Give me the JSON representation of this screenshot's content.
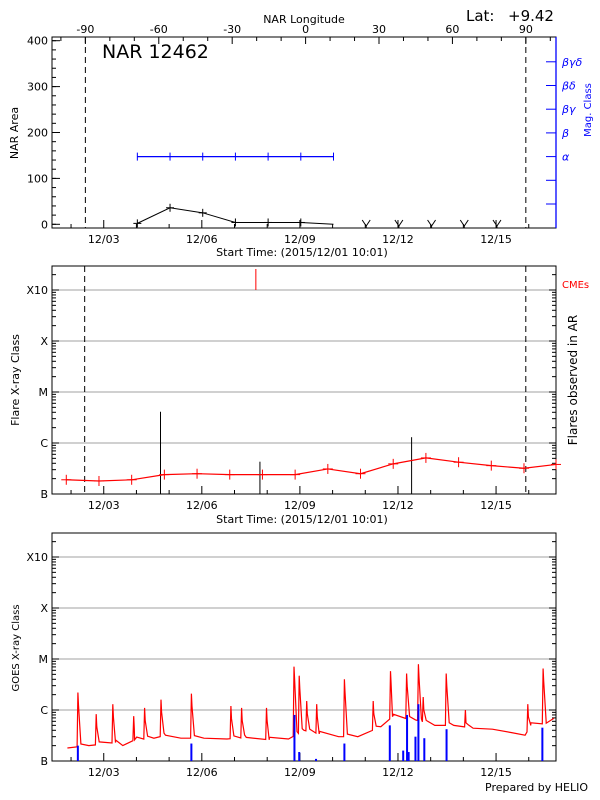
{
  "header": {
    "lat_label": "Lat:",
    "lat_value": "+9.42"
  },
  "footer": {
    "credit": "Prepared by HELIO"
  },
  "colors": {
    "axis": "#000000",
    "grid": "#a0a0a0",
    "mag_class": "#0000ff",
    "flare_series": "#ff0000",
    "cme": "#ff0000",
    "goes_flux": "#ff0000",
    "goes_events": "#0000ff"
  },
  "chart_data": [
    {
      "type": "line",
      "title": "NAR 12462",
      "xlabel": "Start Time: (2015/12/01 10:01)",
      "ylabel": "NAR Area",
      "y2label": "Mag. Class",
      "ylim": [
        0,
        400
      ],
      "yticks": [
        "0",
        "100",
        "200",
        "300",
        "400"
      ],
      "xticks": [
        "12/03",
        "12/06",
        "12/09",
        "12/12",
        "12/15"
      ],
      "top_axis": {
        "label": "NAR Longitude",
        "ticks": [
          "-90",
          "-60",
          "-30",
          "0",
          "30",
          "60",
          "90"
        ]
      },
      "limb_longitudes": [
        -90,
        90
      ],
      "mag_class_ticks": [
        "",
        "",
        "α",
        "β",
        "βγ",
        "βδ",
        "βγδ"
      ],
      "area": {
        "x": [
          "12/04 00:40",
          "12/05 00:40",
          "12/06 00:40",
          "12/07 00:40",
          "12/08 00:40",
          "12/09 00:40",
          "12/10 00:40"
        ],
        "y": [
          2,
          36,
          25,
          4,
          4,
          4,
          0
        ]
      },
      "no_data": [
        "12/11 00:40",
        "12/12 00:40",
        "12/13 00:40",
        "12/14 00:40",
        "12/15 00:40"
      ],
      "mag_class": {
        "x": [
          "12/04 00:40",
          "12/05 00:40",
          "12/06 00:40",
          "12/07 00:40",
          "12/08 00:40",
          "12/09 00:40",
          "12/10 00:40"
        ],
        "values": [
          "α",
          "α",
          "α",
          "α",
          "α",
          "α",
          "α"
        ]
      }
    },
    {
      "type": "line",
      "xlabel": "Start Time: (2015/12/01 10:01)",
      "ylabel": "Flare X-ray Class",
      "y2label": "Flares observed in AR",
      "cme_label": "CMEs",
      "yticks": [
        "B",
        "C",
        "M",
        "X",
        "X10"
      ],
      "xticks": [
        "12/03",
        "12/06",
        "12/09",
        "12/12",
        "12/15"
      ],
      "grid": true,
      "limb_crossings": [
        "12/02 10:00",
        "12/15 21:50"
      ],
      "daily_level": {
        "x": [
          "12/01 20:30",
          "12/02 20:30",
          "12/03 20:30",
          "12/04 20:30",
          "12/05 20:30",
          "12/06 20:30",
          "12/07 20:30",
          "12/08 20:30",
          "12/09 20:30",
          "12/10 20:30",
          "12/11 20:30",
          "12/12 20:30",
          "12/13 20:30",
          "12/14 20:30",
          "12/15 20:30",
          "12/16 20:30"
        ],
        "y": [
          "B1.9",
          "B1.8",
          "B1.9",
          "B2.4",
          "B2.5",
          "B2.4",
          "B2.4",
          "B2.4",
          "B3.1",
          "B2.5",
          "B3.9",
          "B5.1",
          "B4.2",
          "B3.6",
          "B3.2",
          "B3.8"
        ]
      },
      "flares": [
        {
          "time": "12/04 17:40",
          "class": "C4.1"
        },
        {
          "time": "12/07 18:40",
          "class": "B4.3"
        },
        {
          "time": "12/12 10:00",
          "class": "C1.3"
        }
      ],
      "cmes": [
        "12/07 15:40"
      ]
    },
    {
      "type": "line",
      "ylabel": "GOES X-ray Class",
      "yticks": [
        "B",
        "C",
        "M",
        "X",
        "X10"
      ],
      "xticks": [
        "12/03",
        "12/06",
        "12/09",
        "12/12",
        "12/15"
      ],
      "grid": true,
      "baseline": {
        "x": [
          "12/01 10:00",
          "12/01 21:20",
          "12/02 13:00",
          "12/03 08:40",
          "12/03 14:00",
          "12/03 22:40",
          "12/04 12:50",
          "12/04 21:20",
          "12/05 08:40",
          "12/06 01:30",
          "12/06 18:30",
          "12/07 08:40",
          "12/08 01:30",
          "12/08 15:40",
          "12/09 03:00",
          "12/09 14:10",
          "12/10 04:25",
          "12/10 18:30",
          "12/11 11:25",
          "12/11 20:00",
          "12/12 12:50",
          "12/13 03:00",
          "12/13 17:00",
          "12/14 07:10",
          "12/14 21:20",
          "12/15 11:25",
          "12/15 21:20",
          "12/16 01:30",
          "12/16 12:50",
          "12/16 18:30",
          "12/16 21:20"
        ],
        "y": [
          "B2.2",
          "B1.8",
          "B2.0",
          "B2.3",
          "B2.0",
          "B2.6",
          "B2.8",
          "B3.2",
          "B2.8",
          "B2.8",
          "B2.7",
          "B2.9",
          "B2.6",
          "B2.7",
          "B4.0",
          "B3.4",
          "B3.0",
          "B3.0",
          "B4.7",
          "B7.4",
          "B6.4",
          "B5.0",
          "B5.0",
          "B4.4",
          "B4.2",
          "B3.6",
          "B3.2",
          "B5.0",
          "B5.5",
          "B6.9",
          "B6.2"
        ]
      },
      "peaks": [
        {
          "time": "12/02 05:00",
          "class": "C2.2"
        },
        {
          "time": "12/02 18:30",
          "class": "B8.3"
        },
        {
          "time": "12/03 06:40",
          "class": "C1.3"
        },
        {
          "time": "12/03 22:00",
          "class": "B7.6"
        },
        {
          "time": "12/04 06:00",
          "class": "C1.1"
        },
        {
          "time": "12/04 18:00",
          "class": "C1.6"
        },
        {
          "time": "12/05 16:20",
          "class": "C2.1"
        },
        {
          "time": "12/06 21:20",
          "class": "C1.2"
        },
        {
          "time": "12/07 05:10",
          "class": "C1.1"
        },
        {
          "time": "12/07 23:30",
          "class": "C1.1"
        },
        {
          "time": "12/08 19:40",
          "class": "C7.1"
        },
        {
          "time": "12/08 23:30",
          "class": "C4.7"
        },
        {
          "time": "12/09 05:00",
          "class": "C1.5"
        },
        {
          "time": "12/09 12:20",
          "class": "C1.3"
        },
        {
          "time": "12/10 08:40",
          "class": "C4.0"
        },
        {
          "time": "12/11 05:50",
          "class": "C1.5"
        },
        {
          "time": "12/11 18:30",
          "class": "C5.8"
        },
        {
          "time": "12/12 06:20",
          "class": "C5.2"
        },
        {
          "time": "12/12 15:00",
          "class": "C7.9"
        },
        {
          "time": "12/12 18:30",
          "class": "C1.8"
        },
        {
          "time": "12/13 11:25",
          "class": "C5.2"
        },
        {
          "time": "12/14 01:30",
          "class": "C1.0"
        },
        {
          "time": "12/15 23:20",
          "class": "C1.3"
        },
        {
          "time": "12/16 10:30",
          "class": "C6.5"
        }
      ],
      "events": [
        {
          "time": "12/02 05:00",
          "class": "B2.0"
        },
        {
          "time": "12/05 16:20",
          "class": "B2.2"
        },
        {
          "time": "12/08 20:00",
          "class": "B8.0"
        },
        {
          "time": "12/08 23:30",
          "class": "B1.5"
        },
        {
          "time": "12/09 11:50",
          "class": "B1.1"
        },
        {
          "time": "12/10 08:40",
          "class": "B2.2"
        },
        {
          "time": "12/11 18:00",
          "class": "B5.0"
        },
        {
          "time": "12/12 03:50",
          "class": "B1.6"
        },
        {
          "time": "12/12 06:40",
          "class": "B8.0"
        },
        {
          "time": "12/12 07:50",
          "class": "B1.5"
        },
        {
          "time": "12/12 12:50",
          "class": "B3.0"
        },
        {
          "time": "12/12 15:00",
          "class": "C1.3"
        },
        {
          "time": "12/12 19:20",
          "class": "B2.8"
        },
        {
          "time": "12/13 11:40",
          "class": "B4.2"
        },
        {
          "time": "12/16 10:00",
          "class": "B4.5"
        }
      ]
    }
  ]
}
